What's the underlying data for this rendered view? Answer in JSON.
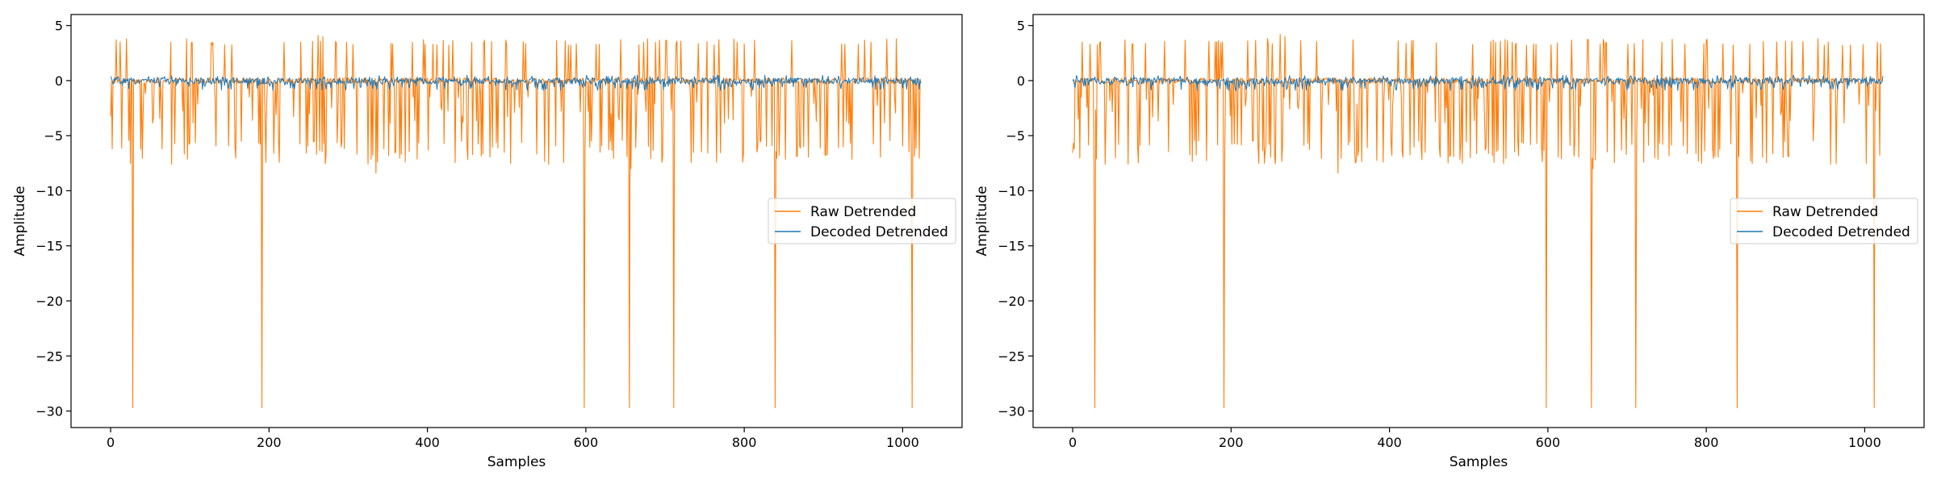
{
  "chart_data": [
    {
      "type": "line",
      "title": "",
      "xlabel": "Samples",
      "ylabel": "Amplitude",
      "xlim": [
        -50,
        1075
      ],
      "ylim": [
        -31.5,
        6
      ],
      "xticks": [
        0,
        200,
        400,
        600,
        800,
        1000
      ],
      "yticks": [
        5,
        0,
        -5,
        -10,
        -15,
        -20,
        -25,
        -30
      ],
      "grid": false,
      "legend_position": "center-right",
      "n_samples": 1024,
      "series": [
        {
          "name": "Raw Detrended",
          "color": "#ff7f0e",
          "description_values": {
            "baseline": 0,
            "typical_positive_spike": 3.5,
            "typical_negative_spike": -6.5,
            "large_negative_spike_at": [
              28,
              191,
              598,
              655,
              711,
              839,
              1012
            ],
            "large_negative_spike_value": -29.7,
            "notable_values": [
              {
                "x": 2,
                "y": -6.2
              },
              {
                "x": 12,
                "y": 3.5
              },
              {
                "x": 262,
                "y": 4.1
              },
              {
                "x": 268,
                "y": 4.0
              },
              {
                "x": 335,
                "y": -8.4
              },
              {
                "x": 657,
                "y": -8.0
              }
            ]
          }
        },
        {
          "name": "Decoded Detrended",
          "color": "#1f77b4",
          "description_values": {
            "baseline": 0,
            "range": [
              -0.9,
              0.5
            ]
          }
        }
      ]
    },
    {
      "type": "line",
      "title": "",
      "xlabel": "Samples",
      "ylabel": "Amplitude",
      "xlim": [
        -50,
        1075
      ],
      "ylim": [
        -31.5,
        6
      ],
      "xticks": [
        0,
        200,
        400,
        600,
        800,
        1000
      ],
      "yticks": [
        5,
        0,
        -5,
        -10,
        -15,
        -20,
        -25,
        -30
      ],
      "grid": false,
      "legend_position": "center-right",
      "n_samples": 1024,
      "series": [
        {
          "name": "Raw Detrended",
          "color": "#ff7f0e",
          "description_values": {
            "baseline": 0,
            "typical_positive_spike": 3.5,
            "typical_negative_spike": -6.5,
            "large_negative_spike_at": [
              28,
              191,
              598,
              655,
              711,
              839,
              1012
            ],
            "large_negative_spike_value": -29.7,
            "notable_values": [
              {
                "x": 2,
                "y": -6.2
              },
              {
                "x": 12,
                "y": 3.5
              },
              {
                "x": 262,
                "y": 4.2
              },
              {
                "x": 268,
                "y": 4.0
              },
              {
                "x": 335,
                "y": -8.4
              },
              {
                "x": 657,
                "y": -8.0
              }
            ]
          }
        },
        {
          "name": "Decoded Detrended",
          "color": "#1f77b4",
          "description_values": {
            "baseline": 0,
            "range": [
              -0.9,
              0.5
            ]
          }
        }
      ]
    }
  ]
}
